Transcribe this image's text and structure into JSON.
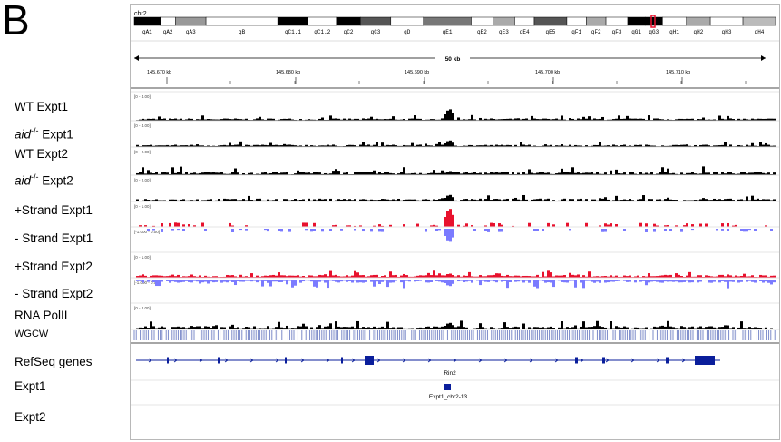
{
  "panel_letter": "B",
  "track_labels": [
    {
      "main": "WT  Expt1",
      "sup": ""
    },
    {
      "main": "aid",
      "sup": "-/-",
      "suffix": " Expt1"
    },
    {
      "main": "WT  Expt2",
      "sup": ""
    },
    {
      "main": "aid",
      "sup": "-/-",
      "suffix": " Expt2"
    },
    {
      "main": "+Strand Expt1"
    },
    {
      "main": "- Strand Expt1"
    },
    {
      "main": "+Strand Expt2"
    },
    {
      "main": "- Strand Expt2"
    },
    {
      "main": "RNA PolII"
    },
    {
      "main": "WGCW"
    },
    {
      "main": "RefSeq genes"
    },
    {
      "main": "Expt1"
    },
    {
      "main": "Expt2"
    }
  ],
  "igv": {
    "chromosome": "chr2",
    "bands": [
      "qA1",
      "qA2",
      "qA3",
      "qB",
      "qC1.1",
      "qC1.2",
      "qC2",
      "qC3",
      "qD",
      "qE1",
      "qE2",
      "qE3",
      "qE4",
      "qE5",
      "qF1",
      "qF2",
      "qF3",
      "qG1",
      "qG3",
      "qH1",
      "qH2",
      "qH3",
      "qH4"
    ],
    "scale_label": "50 kb",
    "ruler_ticks": [
      "145,670 kb",
      "145,680 kb",
      "145,690 kb",
      "145,700 kb",
      "145,710 kb"
    ],
    "track_ranges": [
      "[0 - 4.00]",
      "[0 - 4.00]",
      "[0 - 2.00]",
      "[0 - 2.00]",
      "[0 - 1.00]",
      "[-1.000 - 0.00]",
      "[0 - 1.00]",
      "[-1.000 - 0.00]",
      "[0 - 2.00]"
    ],
    "gene_name": "Rin2",
    "feature_name": "Expt1_chr2-13",
    "colors": {
      "black": "#000000",
      "red": "#e8112d",
      "blue": "#7b7bff",
      "gene": "#0a1e9b",
      "wgcw": "#6f7fc4"
    }
  }
}
